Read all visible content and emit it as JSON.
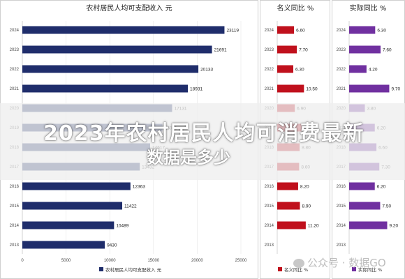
{
  "chart_data": [
    {
      "type": "bar",
      "orientation": "horizontal",
      "title": "农村居民人均可支配收入 元",
      "categories": [
        "2024",
        "2023",
        "2022",
        "2021",
        "2020",
        "2019",
        "2018",
        "2017",
        "2016",
        "2015",
        "2014",
        "2013"
      ],
      "values": [
        23119,
        21691,
        20133,
        18931,
        17131,
        16021,
        14617,
        13432,
        12363,
        11422,
        10489,
        9430
      ],
      "value_labels": [
        "23119",
        "21691",
        "20133",
        "18931",
        "17131",
        "16021",
        "14617",
        "13432",
        "12363",
        "11422",
        "10489",
        "9430"
      ],
      "xlim": [
        0,
        25000
      ],
      "xticks": [
        0,
        5000,
        10000,
        15000,
        20000,
        25000
      ],
      "legend": "农村居民人均可支配收入 元",
      "legend_position": "bottom",
      "grid": true,
      "color": "#1f2d6b"
    },
    {
      "type": "bar",
      "orientation": "horizontal",
      "title": "名义同比 %",
      "categories": [
        "2024",
        "2023",
        "2022",
        "2021",
        "2020",
        "2019",
        "2018",
        "2017",
        "2016",
        "2015",
        "2014",
        "2013"
      ],
      "values": [
        6.6,
        7.7,
        6.3,
        10.5,
        6.9,
        9.6,
        8.8,
        8.6,
        8.2,
        8.9,
        11.2,
        null
      ],
      "value_labels": [
        "6.60",
        "7.70",
        "6.30",
        "10.50",
        "6.90",
        "9.60",
        "8.80",
        "8.60",
        "8.20",
        "8.90",
        "11.20",
        ""
      ],
      "xlim": [
        0,
        20
      ],
      "legend": "名义同比 %",
      "legend_position": "bottom",
      "grid": false,
      "color": "#c0101c"
    },
    {
      "type": "bar",
      "orientation": "horizontal",
      "title": "实际同比 %",
      "categories": [
        "2024",
        "2023",
        "2022",
        "2021",
        "2020",
        "2019",
        "2018",
        "2017",
        "2016",
        "2015",
        "2014",
        "2013"
      ],
      "values": [
        6.3,
        7.6,
        4.2,
        9.7,
        3.8,
        6.2,
        6.6,
        7.3,
        6.2,
        7.5,
        9.2,
        null
      ],
      "value_labels": [
        "6.30",
        "7.60",
        "4.20",
        "9.70",
        "3.80",
        "6.20",
        "6.60",
        "7.30",
        "6.20",
        "7.50",
        "9.20",
        ""
      ],
      "xlim": [
        0,
        13
      ],
      "legend": "实际同比 %",
      "legend_position": "bottom",
      "grid": false,
      "color": "#7030a0"
    }
  ],
  "overlay": {
    "title": "2023年农村居民人均可消费最新",
    "subtitle": "数据是多少"
  },
  "watermark": {
    "text": "公众号 · 数据GO"
  }
}
